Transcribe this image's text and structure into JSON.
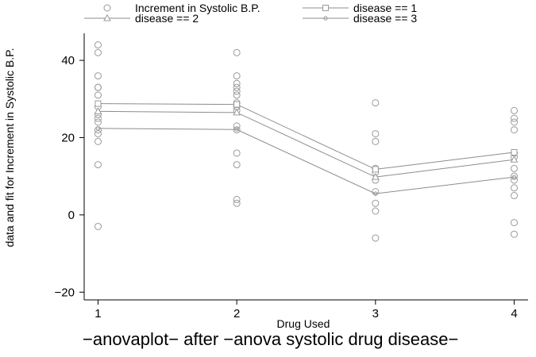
{
  "chart_data": {
    "type": "scatter",
    "xlabel": "Drug Used",
    "ylabel": "data and fit for Increment in Systolic B.P.",
    "caption": "−anovaplot− after −anova systolic drug disease−",
    "xlim": [
      0.9,
      4.1
    ],
    "ylim": [
      -22,
      47
    ],
    "x_ticks": [
      1,
      2,
      3,
      4
    ],
    "x_tick_labels": [
      "1",
      "2",
      "3",
      "4"
    ],
    "y_ticks": [
      -20,
      0,
      20,
      40
    ],
    "y_tick_labels": [
      "−20",
      "0",
      "20",
      "40"
    ],
    "grid": false,
    "legend_position": "top",
    "legend": [
      {
        "label": "Increment in Systolic B.P.",
        "marker": "circle",
        "line": false
      },
      {
        "label": "disease == 1",
        "marker": "square",
        "line": true
      },
      {
        "label": "disease == 2",
        "marker": "triangle",
        "line": true
      },
      {
        "label": "disease == 3",
        "marker": "small-circle",
        "line": true
      }
    ],
    "observed": {
      "name": "Increment in Systolic B.P.",
      "points": [
        [
          1,
          44
        ],
        [
          1,
          42
        ],
        [
          1,
          36
        ],
        [
          1,
          33
        ],
        [
          1,
          33
        ],
        [
          1,
          31
        ],
        [
          1,
          28
        ],
        [
          1,
          26
        ],
        [
          1,
          25
        ],
        [
          1,
          24
        ],
        [
          1,
          22
        ],
        [
          1,
          21
        ],
        [
          1,
          19
        ],
        [
          1,
          13
        ],
        [
          1,
          -3
        ],
        [
          2,
          42
        ],
        [
          2,
          36
        ],
        [
          2,
          34
        ],
        [
          2,
          33
        ],
        [
          2,
          32
        ],
        [
          2,
          31
        ],
        [
          2,
          29
        ],
        [
          2,
          28
        ],
        [
          2,
          27
        ],
        [
          2,
          23
        ],
        [
          2,
          22
        ],
        [
          2,
          16
        ],
        [
          2,
          13
        ],
        [
          2,
          4
        ],
        [
          2,
          3
        ],
        [
          3,
          29
        ],
        [
          3,
          21
        ],
        [
          3,
          19
        ],
        [
          3,
          12
        ],
        [
          3,
          11
        ],
        [
          3,
          9
        ],
        [
          3,
          6
        ],
        [
          3,
          3
        ],
        [
          3,
          1
        ],
        [
          3,
          -6
        ],
        [
          4,
          27
        ],
        [
          4,
          25
        ],
        [
          4,
          24
        ],
        [
          4,
          22
        ],
        [
          4,
          16
        ],
        [
          4,
          15
        ],
        [
          4,
          12
        ],
        [
          4,
          10
        ],
        [
          4,
          9
        ],
        [
          4,
          7
        ],
        [
          4,
          5
        ],
        [
          4,
          -2
        ],
        [
          4,
          -5
        ]
      ]
    },
    "series": [
      {
        "name": "disease == 1",
        "marker": "square",
        "x": [
          1,
          2,
          3,
          4
        ],
        "values": [
          28.8,
          28.6,
          11.8,
          16.2
        ]
      },
      {
        "name": "disease == 2",
        "marker": "triangle",
        "x": [
          1,
          2,
          3,
          4
        ],
        "values": [
          26.8,
          26.5,
          9.8,
          14.3
        ]
      },
      {
        "name": "disease == 3",
        "marker": "small-circle",
        "x": [
          1,
          2,
          3,
          4
        ],
        "values": [
          22.4,
          22.1,
          5.5,
          9.8
        ]
      }
    ],
    "colors": {
      "markers": "#9a9a9a",
      "lines": "#8c8c8c",
      "axes": "#000000",
      "text": "#000000"
    }
  }
}
